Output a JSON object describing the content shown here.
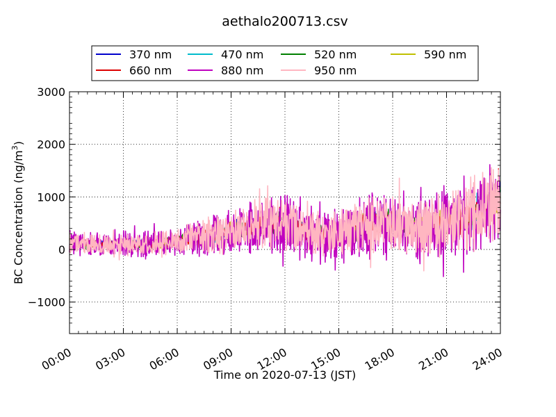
{
  "chart_data": {
    "type": "line",
    "title": "aethalo200713.csv",
    "xlabel": "Time on 2020-07-13 (JST)",
    "ylabel_main": "BC Concentration (ng/m",
    "ylabel_sup": "3",
    "ylabel_end": ")",
    "x_ticks": [
      "00:00",
      "03:00",
      "06:00",
      "09:00",
      "12:00",
      "15:00",
      "18:00",
      "21:00",
      "24:00"
    ],
    "x_hours": [
      0,
      3,
      6,
      9,
      12,
      15,
      18,
      21,
      24
    ],
    "y_ticks": [
      -1000,
      0,
      1000,
      2000,
      3000
    ],
    "y_tick_labels": [
      "−1000",
      "0",
      "1000",
      "2000",
      "3000"
    ],
    "xlim": [
      0,
      24
    ],
    "ylim": [
      -1600,
      3000
    ],
    "grid": true,
    "legend_position": "top",
    "series": [
      {
        "name": "370 nm",
        "color": "#0000cc",
        "x": [
          0,
          1,
          2,
          3,
          4,
          5,
          6,
          7,
          8,
          9,
          10,
          11,
          12,
          13,
          14,
          15,
          16,
          17,
          18,
          19,
          20,
          21,
          22,
          23,
          24
        ],
        "y": [
          150,
          120,
          100,
          110,
          90,
          130,
          180,
          250,
          300,
          350,
          420,
          520,
          500,
          380,
          300,
          280,
          420,
          560,
          520,
          440,
          480,
          540,
          600,
          800,
          1100
        ]
      },
      {
        "name": "470 nm",
        "color": "#00bbcc",
        "x": [
          0,
          1,
          2,
          3,
          4,
          5,
          6,
          7,
          8,
          9,
          10,
          11,
          12,
          13,
          14,
          15,
          16,
          17,
          18,
          19,
          20,
          21,
          22,
          23,
          24
        ],
        "y": [
          140,
          120,
          100,
          105,
          95,
          130,
          170,
          240,
          290,
          340,
          410,
          500,
          480,
          370,
          300,
          290,
          410,
          550,
          510,
          430,
          470,
          530,
          590,
          780,
          1050
        ]
      },
      {
        "name": "520 nm",
        "color": "#007f00",
        "x": [
          0,
          1,
          2,
          3,
          4,
          5,
          6,
          7,
          8,
          9,
          10,
          11,
          12,
          13,
          14,
          15,
          16,
          17,
          18,
          19,
          20,
          21,
          22,
          23,
          24
        ],
        "y": [
          140,
          115,
          95,
          105,
          90,
          125,
          170,
          240,
          290,
          340,
          400,
          500,
          480,
          360,
          290,
          280,
          400,
          540,
          500,
          420,
          460,
          520,
          580,
          760,
          1020
        ]
      },
      {
        "name": "590 nm",
        "color": "#bfbf00",
        "x": [
          0,
          1,
          2,
          3,
          4,
          5,
          6,
          7,
          8,
          9,
          10,
          11,
          12,
          13,
          14,
          15,
          16,
          17,
          18,
          19,
          20,
          21,
          22,
          23,
          24
        ],
        "y": [
          130,
          110,
          95,
          100,
          90,
          120,
          165,
          230,
          285,
          330,
          390,
          490,
          470,
          350,
          290,
          280,
          390,
          530,
          490,
          410,
          450,
          510,
          570,
          740,
          1000
        ]
      },
      {
        "name": "660 nm",
        "color": "#dd0000",
        "x": [
          0,
          1,
          2,
          3,
          4,
          5,
          6,
          7,
          8,
          9,
          10,
          11,
          12,
          13,
          14,
          15,
          16,
          17,
          18,
          19,
          20,
          21,
          22,
          23,
          24
        ],
        "y": [
          130,
          110,
          90,
          100,
          85,
          120,
          160,
          230,
          280,
          330,
          400,
          520,
          490,
          350,
          280,
          270,
          380,
          520,
          480,
          400,
          440,
          500,
          560,
          730,
          980
        ]
      },
      {
        "name": "880 nm",
        "color": "#bf00bf",
        "x": [
          0,
          1,
          2,
          3,
          4,
          5,
          6,
          7,
          8,
          9,
          10,
          11,
          12,
          13,
          14,
          15,
          16,
          17,
          18,
          19,
          20,
          21,
          22,
          23,
          24
        ],
        "y": [
          120,
          100,
          90,
          100,
          80,
          110,
          150,
          220,
          270,
          320,
          380,
          480,
          450,
          330,
          270,
          260,
          370,
          500,
          460,
          380,
          420,
          480,
          540,
          720,
          950
        ]
      },
      {
        "name": "950 nm",
        "color": "#ffb6c1",
        "x": [
          0,
          1,
          2,
          3,
          4,
          5,
          6,
          7,
          8,
          9,
          10,
          11,
          12,
          13,
          14,
          15,
          16,
          17,
          18,
          19,
          20,
          21,
          22,
          23,
          24
        ],
        "y": [
          120,
          100,
          90,
          100,
          85,
          115,
          155,
          220,
          270,
          320,
          400,
          560,
          520,
          350,
          290,
          300,
          420,
          540,
          480,
          400,
          450,
          520,
          600,
          780,
          1000
        ]
      }
    ],
    "spread": {
      "370 nm": 0.25,
      "470 nm": 0.25,
      "520 nm": 0.3,
      "590 nm": 0.3,
      "660 nm": 0.35,
      "880 nm": 1.0,
      "950 nm": 0.85
    }
  }
}
